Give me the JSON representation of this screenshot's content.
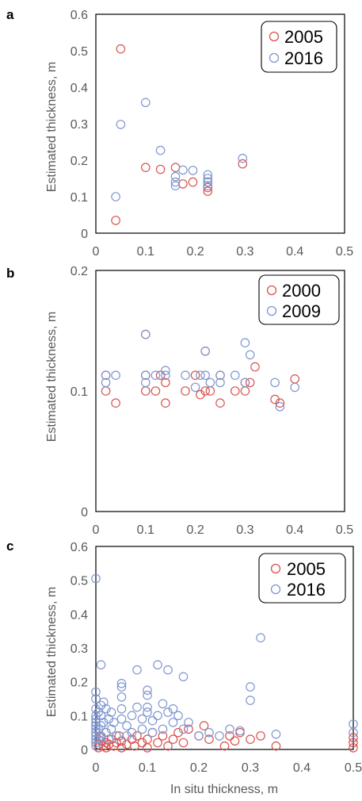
{
  "colors": {
    "red": "#d9534f",
    "blue": "#7f96d0",
    "axis": "#000000"
  },
  "chart_data": [
    {
      "panel": "a",
      "type": "scatter",
      "ylabel": "Estimated thickness, m",
      "xlabel": "",
      "xlim": [
        0,
        0.5
      ],
      "ylim": [
        0,
        0.6
      ],
      "xticks": [
        "0",
        "0.1",
        "0.2",
        "0.3",
        "0.4",
        "0.5"
      ],
      "yticks": [
        "0",
        "0.1",
        "0.2",
        "0.3",
        "0.4",
        "0.5",
        "0.6"
      ],
      "legend_position": "top-right",
      "series": [
        {
          "name": "2005",
          "color": "red",
          "points": [
            [
              0.05,
              0.505
            ],
            [
              0.04,
              0.035
            ],
            [
              0.1,
              0.18
            ],
            [
              0.13,
              0.175
            ],
            [
              0.16,
              0.18
            ],
            [
              0.175,
              0.135
            ],
            [
              0.195,
              0.14
            ],
            [
              0.225,
              0.115
            ],
            [
              0.225,
              0.125
            ],
            [
              0.225,
              0.14
            ],
            [
              0.295,
              0.19
            ]
          ]
        },
        {
          "name": "2016",
          "color": "blue",
          "points": [
            [
              0.05,
              0.298
            ],
            [
              0.04,
              0.1
            ],
            [
              0.1,
              0.358
            ],
            [
              0.13,
              0.227
            ],
            [
              0.16,
              0.155
            ],
            [
              0.16,
              0.14
            ],
            [
              0.16,
              0.13
            ],
            [
              0.175,
              0.173
            ],
            [
              0.195,
              0.172
            ],
            [
              0.225,
              0.16
            ],
            [
              0.225,
              0.15
            ],
            [
              0.225,
              0.14
            ],
            [
              0.225,
              0.13
            ],
            [
              0.295,
              0.205
            ]
          ]
        }
      ]
    },
    {
      "panel": "b",
      "type": "scatter",
      "ylabel": "Estimated thickness, m",
      "xlabel": "",
      "xlim": [
        0,
        0.5
      ],
      "ylim": [
        0,
        0.2
      ],
      "xticks": [
        "0",
        "0.1",
        "0.2",
        "0.3",
        "0.4",
        "0.5"
      ],
      "yticks": [
        "0",
        "0.1",
        "0.2"
      ],
      "legend_position": "top-right",
      "series": [
        {
          "name": "2000",
          "color": "red",
          "points": [
            [
              0.02,
              0.113
            ],
            [
              0.02,
              0.1
            ],
            [
              0.04,
              0.09
            ],
            [
              0.1,
              0.147
            ],
            [
              0.1,
              0.113
            ],
            [
              0.1,
              0.1
            ],
            [
              0.12,
              0.1
            ],
            [
              0.13,
              0.113
            ],
            [
              0.14,
              0.107
            ],
            [
              0.14,
              0.09
            ],
            [
              0.18,
              0.1
            ],
            [
              0.2,
              0.113
            ],
            [
              0.21,
              0.097
            ],
            [
              0.22,
              0.1
            ],
            [
              0.22,
              0.133
            ],
            [
              0.23,
              0.1
            ],
            [
              0.25,
              0.09
            ],
            [
              0.25,
              0.113
            ],
            [
              0.28,
              0.1
            ],
            [
              0.3,
              0.107
            ],
            [
              0.3,
              0.1
            ],
            [
              0.31,
              0.107
            ],
            [
              0.32,
              0.12
            ],
            [
              0.36,
              0.093
            ],
            [
              0.37,
              0.09
            ],
            [
              0.4,
              0.11
            ]
          ]
        },
        {
          "name": "2009",
          "color": "blue",
          "points": [
            [
              0.02,
              0.113
            ],
            [
              0.02,
              0.107
            ],
            [
              0.04,
              0.113
            ],
            [
              0.1,
              0.147
            ],
            [
              0.1,
              0.113
            ],
            [
              0.1,
              0.107
            ],
            [
              0.12,
              0.113
            ],
            [
              0.14,
              0.113
            ],
            [
              0.14,
              0.117
            ],
            [
              0.18,
              0.113
            ],
            [
              0.2,
              0.103
            ],
            [
              0.21,
              0.113
            ],
            [
              0.22,
              0.133
            ],
            [
              0.22,
              0.113
            ],
            [
              0.23,
              0.107
            ],
            [
              0.25,
              0.113
            ],
            [
              0.25,
              0.107
            ],
            [
              0.28,
              0.113
            ],
            [
              0.3,
              0.14
            ],
            [
              0.31,
              0.13
            ],
            [
              0.3,
              0.107
            ],
            [
              0.36,
              0.107
            ],
            [
              0.37,
              0.087
            ],
            [
              0.4,
              0.103
            ]
          ]
        }
      ]
    },
    {
      "panel": "c",
      "type": "scatter",
      "ylabel": "Estimated thickness, m",
      "xlabel": "In situ thickness, m",
      "xlim": [
        0,
        0.5
      ],
      "ylim": [
        0,
        0.6
      ],
      "xticks": [
        "0",
        "0.1",
        "0.2",
        "0.3",
        "0.4",
        "0.5"
      ],
      "yticks": [
        "0",
        "0.1",
        "0.2",
        "0.3",
        "0.4",
        "0.5",
        "0.6"
      ],
      "legend_position": "top-right",
      "series": [
        {
          "name": "2005",
          "color": "red",
          "points": [
            [
              0.005,
              0.005
            ],
            [
              0.005,
              0.015
            ],
            [
              0.01,
              0.025
            ],
            [
              0.01,
              0.035
            ],
            [
              0.015,
              0.01
            ],
            [
              0.02,
              0.02
            ],
            [
              0.02,
              0.005
            ],
            [
              0.025,
              0.015
            ],
            [
              0.03,
              0.03
            ],
            [
              0.035,
              0.01
            ],
            [
              0.04,
              0.02
            ],
            [
              0.045,
              0.04
            ],
            [
              0.05,
              0.005
            ],
            [
              0.05,
              0.025
            ],
            [
              0.06,
              0.015
            ],
            [
              0.07,
              0.03
            ],
            [
              0.075,
              0.01
            ],
            [
              0.08,
              0.04
            ],
            [
              0.09,
              0.02
            ],
            [
              0.1,
              0.03
            ],
            [
              0.1,
              0.005
            ],
            [
              0.11,
              0.05
            ],
            [
              0.12,
              0.02
            ],
            [
              0.13,
              0.04
            ],
            [
              0.14,
              0.01
            ],
            [
              0.15,
              0.03
            ],
            [
              0.16,
              0.05
            ],
            [
              0.17,
              0.02
            ],
            [
              0.18,
              0.06
            ],
            [
              0.2,
              0.04
            ],
            [
              0.21,
              0.07
            ],
            [
              0.22,
              0.03
            ],
            [
              0.25,
              0.01
            ],
            [
              0.26,
              0.04
            ],
            [
              0.27,
              0.025
            ],
            [
              0.28,
              0.05
            ],
            [
              0.3,
              0.03
            ],
            [
              0.32,
              0.04
            ],
            [
              0.35,
              0.01
            ],
            [
              0.5,
              0.02
            ],
            [
              0.5,
              0.005
            ],
            [
              0.5,
              0.035
            ]
          ]
        },
        {
          "name": "2016",
          "color": "blue",
          "points": [
            [
              0.0,
              0.505
            ],
            [
              0.0,
              0.17
            ],
            [
              0.0,
              0.15
            ],
            [
              0.0,
              0.12
            ],
            [
              0.0,
              0.1
            ],
            [
              0.0,
              0.09
            ],
            [
              0.0,
              0.08
            ],
            [
              0.0,
              0.07
            ],
            [
              0.0,
              0.06
            ],
            [
              0.0,
              0.05
            ],
            [
              0.0,
              0.04
            ],
            [
              0.0,
              0.03
            ],
            [
              0.0,
              0.02
            ],
            [
              0.0,
              0.01
            ],
            [
              0.005,
              0.11
            ],
            [
              0.005,
              0.06
            ],
            [
              0.005,
              0.03
            ],
            [
              0.01,
              0.25
            ],
            [
              0.01,
              0.13
            ],
            [
              0.01,
              0.1
            ],
            [
              0.01,
              0.07
            ],
            [
              0.01,
              0.04
            ],
            [
              0.015,
              0.14
            ],
            [
              0.015,
              0.08
            ],
            [
              0.02,
              0.12
            ],
            [
              0.02,
              0.05
            ],
            [
              0.025,
              0.09
            ],
            [
              0.025,
              0.03
            ],
            [
              0.03,
              0.11
            ],
            [
              0.03,
              0.06
            ],
            [
              0.035,
              0.08
            ],
            [
              0.04,
              0.04
            ],
            [
              0.05,
              0.195
            ],
            [
              0.05,
              0.185
            ],
            [
              0.05,
              0.155
            ],
            [
              0.05,
              0.12
            ],
            [
              0.05,
              0.09
            ],
            [
              0.06,
              0.07
            ],
            [
              0.06,
              0.04
            ],
            [
              0.07,
              0.1
            ],
            [
              0.07,
              0.05
            ],
            [
              0.08,
              0.125
            ],
            [
              0.08,
              0.235
            ],
            [
              0.09,
              0.09
            ],
            [
              0.09,
              0.06
            ],
            [
              0.1,
              0.175
            ],
            [
              0.1,
              0.16
            ],
            [
              0.1,
              0.125
            ],
            [
              0.1,
              0.11
            ],
            [
              0.11,
              0.085
            ],
            [
              0.11,
              0.05
            ],
            [
              0.12,
              0.25
            ],
            [
              0.12,
              0.1
            ],
            [
              0.13,
              0.135
            ],
            [
              0.13,
              0.06
            ],
            [
              0.14,
              0.235
            ],
            [
              0.14,
              0.11
            ],
            [
              0.15,
              0.12
            ],
            [
              0.15,
              0.08
            ],
            [
              0.16,
              0.1
            ],
            [
              0.17,
              0.215
            ],
            [
              0.17,
              0.06
            ],
            [
              0.18,
              0.08
            ],
            [
              0.2,
              0.04
            ],
            [
              0.22,
              0.05
            ],
            [
              0.24,
              0.04
            ],
            [
              0.26,
              0.06
            ],
            [
              0.28,
              0.055
            ],
            [
              0.3,
              0.185
            ],
            [
              0.3,
              0.145
            ],
            [
              0.32,
              0.33
            ],
            [
              0.35,
              0.045
            ],
            [
              0.5,
              0.075
            ],
            [
              0.5,
              0.05
            ]
          ]
        }
      ]
    }
  ]
}
